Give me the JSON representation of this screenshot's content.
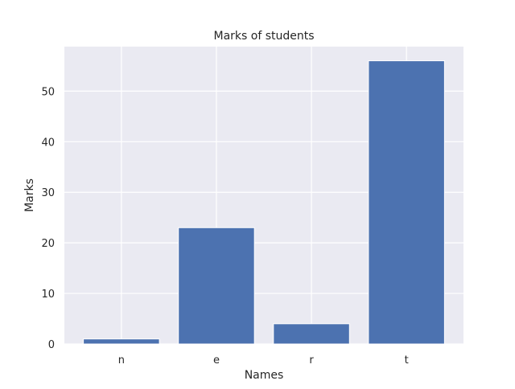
{
  "chart_data": {
    "type": "bar",
    "title": "Marks of students",
    "xlabel": "Names",
    "ylabel": "Marks",
    "categories": [
      "n",
      "e",
      "r",
      "t"
    ],
    "values": [
      1,
      23,
      4,
      56
    ],
    "ylim": [
      0,
      58.8
    ],
    "yticks": [
      0,
      10,
      20,
      30,
      40,
      50
    ],
    "grid": true,
    "legend": "none",
    "bar_color": "#4c72b0",
    "plot_background": "#eaeaf2",
    "grid_color": "#ffffff"
  }
}
